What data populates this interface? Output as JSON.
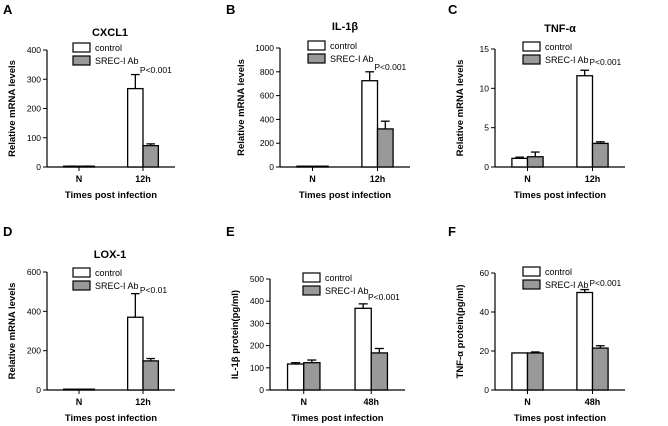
{
  "figure": {
    "legend": {
      "control": "control",
      "srec": "SREC-I Ab"
    }
  },
  "chart_data": [
    {
      "panel": "A",
      "title": "CXCL1",
      "type": "bar",
      "ylabel": "Relative mRNA levels",
      "xlabel": "Times post infection",
      "categories": [
        "N",
        "12h"
      ],
      "ylim": [
        0,
        400
      ],
      "yticks": [
        0,
        100,
        200,
        300,
        400
      ],
      "series": [
        {
          "name": "control",
          "values": [
            2,
            268
          ],
          "errors": [
            1,
            48
          ]
        },
        {
          "name": "SREC-I Ab",
          "values": [
            2,
            73
          ],
          "errors": [
            1,
            6
          ]
        }
      ],
      "annotation": {
        "text": "P<0.001",
        "category": "12h"
      }
    },
    {
      "panel": "B",
      "title": "IL-1β",
      "type": "bar",
      "ylabel": "Relative mRNA levels",
      "xlabel": "Times post infection",
      "categories": [
        "N",
        "12h"
      ],
      "ylim": [
        0,
        1000
      ],
      "yticks": [
        0,
        200,
        400,
        600,
        800,
        1000
      ],
      "series": [
        {
          "name": "control",
          "values": [
            3,
            725
          ],
          "errors": [
            1,
            75
          ]
        },
        {
          "name": "SREC-I Ab",
          "values": [
            3,
            320
          ],
          "errors": [
            1,
            65
          ]
        }
      ],
      "annotation": {
        "text": "P<0.001",
        "category": "12h"
      }
    },
    {
      "panel": "C",
      "title": "TNF-α",
      "type": "bar",
      "ylabel": "Relative mRNA levels",
      "xlabel": "Times post infection",
      "categories": [
        "N",
        "12h"
      ],
      "ylim": [
        0,
        15
      ],
      "yticks": [
        0,
        5,
        10,
        15
      ],
      "series": [
        {
          "name": "control",
          "values": [
            1.1,
            11.6
          ],
          "errors": [
            0.15,
            0.7
          ]
        },
        {
          "name": "SREC-I Ab",
          "values": [
            1.3,
            3.0
          ],
          "errors": [
            0.6,
            0.2
          ]
        }
      ],
      "annotation": {
        "text": "P<0.001",
        "category": "12h"
      }
    },
    {
      "panel": "D",
      "title": "LOX-1",
      "type": "bar",
      "ylabel": "Relative mRNA levels",
      "xlabel": "Times post infection",
      "categories": [
        "N",
        "12h"
      ],
      "ylim": [
        0,
        600
      ],
      "yticks": [
        0,
        200,
        400,
        600
      ],
      "series": [
        {
          "name": "control",
          "values": [
            2,
            370
          ],
          "errors": [
            1,
            120
          ]
        },
        {
          "name": "SREC-I Ab",
          "values": [
            2,
            148
          ],
          "errors": [
            1,
            12
          ]
        }
      ],
      "annotation": {
        "text": "P<0.01",
        "category": "12h"
      }
    },
    {
      "panel": "E",
      "title": "",
      "type": "bar",
      "ylabel": "IL-1β protein(pg/ml)",
      "xlabel": "Times post infection",
      "categories": [
        "N",
        "48h"
      ],
      "ylim": [
        0,
        500
      ],
      "yticks": [
        0,
        100,
        200,
        300,
        400,
        500
      ],
      "series": [
        {
          "name": "control",
          "values": [
            117,
            368
          ],
          "errors": [
            6,
            20
          ]
        },
        {
          "name": "SREC-I Ab",
          "values": [
            123,
            167
          ],
          "errors": [
            12,
            20
          ]
        }
      ],
      "annotation": {
        "text": "P<0.001",
        "category": "48h"
      }
    },
    {
      "panel": "F",
      "title": "",
      "type": "bar",
      "ylabel": "TNF-α protein(pg/ml)",
      "xlabel": "Times post infection",
      "categories": [
        "N",
        "48h"
      ],
      "ylim": [
        0,
        60
      ],
      "yticks": [
        0,
        20,
        40,
        60
      ],
      "series": [
        {
          "name": "control",
          "values": [
            19,
            50
          ],
          "errors": [
            0,
            1.5
          ]
        },
        {
          "name": "SREC-I Ab",
          "values": [
            19,
            21.5
          ],
          "errors": [
            0.5,
            1.2
          ]
        }
      ],
      "annotation": {
        "text": "P<0.001",
        "category": "48h"
      }
    }
  ],
  "colors": {
    "control": "#ffffff",
    "srec": "#999999",
    "stroke": "#000000"
  }
}
